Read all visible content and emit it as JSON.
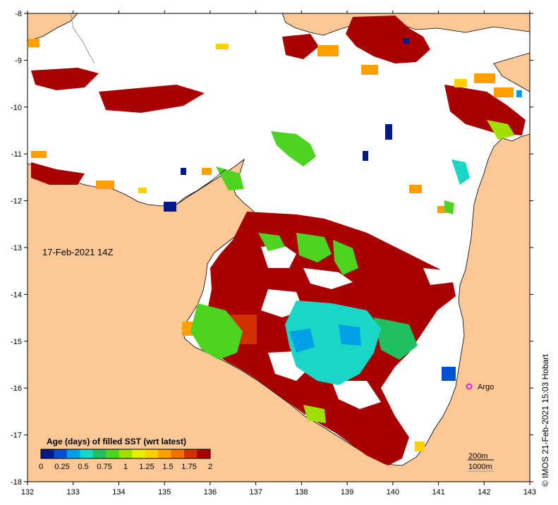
{
  "map": {
    "timestamp": "17-Feb-2021 14Z",
    "x_ticks": [
      "132",
      "133",
      "134",
      "135",
      "136",
      "137",
      "138",
      "139",
      "140",
      "141",
      "142",
      "143"
    ],
    "y_ticks": [
      "-8",
      "-9",
      "-10",
      "-11",
      "-12",
      "-13",
      "-14",
      "-15",
      "-16",
      "-17",
      "-18"
    ],
    "lon_range": [
      132,
      143
    ],
    "lat_range": [
      -8,
      -18
    ],
    "argo_label": "Argo",
    "contour_legend": {
      "label_200": "200m",
      "label_1000": "1000m"
    },
    "credit": "IMOS 21-Feb-2021 15:03 Hobart",
    "copyright_symbol": "©"
  },
  "colorbar": {
    "title": "Age (days) of filled SST (wrt latest)",
    "tick_labels": [
      "0",
      "0.25",
      "0.5",
      "0.75",
      "1",
      "1.25",
      "1.5",
      "1.75",
      "2"
    ],
    "colors": [
      "#001a8c",
      "#0050d0",
      "#00a0e6",
      "#19d6c6",
      "#20c060",
      "#4cd420",
      "#a0e000",
      "#e8f000",
      "#ffd000",
      "#ffa000",
      "#f07000",
      "#d03000",
      "#a80000"
    ]
  },
  "colors": {
    "land": "#fcc895",
    "ocean": "#ffffff",
    "old_sst": "#a80000",
    "argo": "#e020e0"
  }
}
